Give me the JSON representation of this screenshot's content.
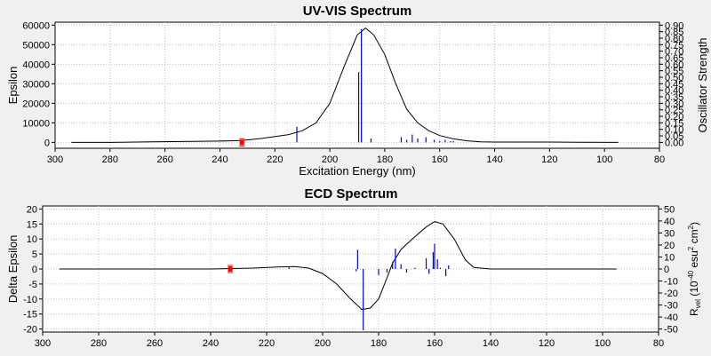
{
  "colors": {
    "plot_bg": "#ffffff",
    "window_bg": "#f0f0f0",
    "curve": "#000000",
    "sticks": "#0000ff",
    "marker": "#ff0000",
    "grid": "#c0c0c0"
  },
  "chart_data": [
    {
      "type": "line",
      "title": "UV-VIS Spectrum",
      "xlabel": "Excitation Energy (nm)",
      "ylabel": "Epsilon",
      "y2label": "Oscillator Strength",
      "xlim": [
        300,
        80
      ],
      "ylim": [
        -3000,
        61500
      ],
      "y2lim": [
        -0.045,
        0.9225
      ],
      "x_ticks": [
        300,
        280,
        260,
        240,
        220,
        200,
        180,
        160,
        140,
        120,
        100,
        80
      ],
      "y_ticks": [
        0,
        10000,
        20000,
        30000,
        40000,
        50000,
        60000
      ],
      "y2_ticks": [
        "0.00",
        "0.05",
        "0.10",
        "0.15",
        "0.20",
        "0.25",
        "0.30",
        "0.35",
        "0.40",
        "0.45",
        "0.50",
        "0.55",
        "0.60",
        "0.65",
        "0.70",
        "0.75",
        "0.80",
        "0.85",
        "0.90"
      ],
      "grid": "dotted",
      "series": [
        {
          "kind": "curve",
          "points": [
            [
              294,
              0
            ],
            [
              280,
              0
            ],
            [
              265,
              300
            ],
            [
              250,
              500
            ],
            [
              240,
              700
            ],
            [
              232,
              1000
            ],
            [
              225,
              2000
            ],
            [
              215,
              4000
            ],
            [
              210,
              6000
            ],
            [
              205,
              10000
            ],
            [
              200,
              20000
            ],
            [
              195,
              38000
            ],
            [
              190,
              55000
            ],
            [
              187,
              58500
            ],
            [
              184,
              55000
            ],
            [
              180,
              45000
            ],
            [
              176,
              30000
            ],
            [
              172,
              17000
            ],
            [
              168,
              10000
            ],
            [
              164,
              6000
            ],
            [
              160,
              3500
            ],
            [
              155,
              1800
            ],
            [
              150,
              800
            ],
            [
              145,
              300
            ],
            [
              140,
              200
            ],
            [
              120,
              200
            ],
            [
              110,
              100
            ],
            [
              95,
              0
            ]
          ]
        },
        {
          "kind": "sticks",
          "points": [
            [
              212,
              0.12
            ],
            [
              189.5,
              0.54
            ],
            [
              188.5,
              0.87
            ],
            [
              185,
              0.03
            ],
            [
              174,
              0.04
            ],
            [
              172,
              0.02
            ],
            [
              170,
              0.06
            ],
            [
              168,
              0.03
            ],
            [
              165,
              0.04
            ],
            [
              162,
              0.02
            ],
            [
              160,
              0.01
            ],
            [
              158,
              0.02
            ],
            [
              156,
              0.01
            ],
            [
              155,
              0.01
            ]
          ]
        },
        {
          "kind": "marker",
          "points": [
            [
              232,
              0
            ]
          ]
        }
      ]
    },
    {
      "type": "line",
      "title": "ECD Spectrum",
      "xlabel": "",
      "ylabel": "Delta Epsilon",
      "y2label_parts": {
        "a": "R",
        "a_sub": "vel",
        "b": " (10",
        "b_sup": "-40",
        "c": " esu",
        "c_sup": "2",
        "d": " cm",
        "d_sup": "2",
        "e": ")"
      },
      "xlim": [
        300,
        80
      ],
      "ylim": [
        -21,
        21
      ],
      "y2lim": [
        -52.5,
        52.5
      ],
      "x_ticks": [
        300,
        280,
        260,
        240,
        220,
        200,
        180,
        160,
        140,
        120,
        100,
        80
      ],
      "y_ticks": [
        -20,
        -15,
        -10,
        -5,
        0,
        5,
        10,
        15,
        20
      ],
      "y2_ticks": [
        -50,
        -40,
        -30,
        -20,
        -10,
        0,
        10,
        20,
        30,
        40,
        50
      ],
      "grid": "dotted",
      "series": [
        {
          "kind": "curve",
          "points": [
            [
              294,
              0
            ],
            [
              240,
              0
            ],
            [
              225,
              0.3
            ],
            [
              215,
              0.7
            ],
            [
              210,
              0.8
            ],
            [
              205,
              0.3
            ],
            [
              200,
              -1.5
            ],
            [
              195,
              -5
            ],
            [
              190,
              -10
            ],
            [
              186,
              -13.5
            ],
            [
              183,
              -13
            ],
            [
              180,
              -10
            ],
            [
              177,
              -3
            ],
            [
              175,
              2
            ],
            [
              172,
              6.5
            ],
            [
              168,
              10
            ],
            [
              163,
              14
            ],
            [
              160,
              15.8
            ],
            [
              157,
              15
            ],
            [
              153,
              10
            ],
            [
              149,
              3
            ],
            [
              146,
              0.5
            ],
            [
              140,
              0
            ],
            [
              95,
              0
            ]
          ]
        },
        {
          "kind": "sticks",
          "points": [
            [
              212,
              2
            ],
            [
              188,
              -2
            ],
            [
              187.5,
              16
            ],
            [
              185.5,
              -51
            ],
            [
              180,
              -5
            ],
            [
              177,
              -3
            ],
            [
              175,
              6
            ],
            [
              174,
              17
            ],
            [
              172,
              4
            ],
            [
              170,
              -3
            ],
            [
              167,
              1
            ],
            [
              163,
              9
            ],
            [
              162,
              -4
            ],
            [
              160.5,
              14
            ],
            [
              160,
              21
            ],
            [
              159,
              8
            ],
            [
              158,
              1
            ],
            [
              156,
              -6
            ],
            [
              155,
              3
            ]
          ]
        },
        {
          "kind": "marker",
          "points": [
            [
              233,
              0
            ]
          ]
        }
      ]
    }
  ]
}
